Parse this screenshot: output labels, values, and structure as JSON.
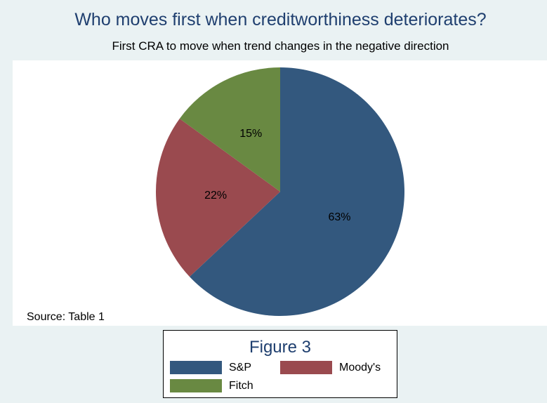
{
  "chart_data": {
    "type": "pie",
    "title": "Who moves first when creditworthiness deteriorates?",
    "subtitle": "First CRA to move when trend changes in the negative direction",
    "note": "Source: Table 1",
    "legend_title": "Figure 3",
    "legend_position": "bottom",
    "slices": [
      {
        "name": "S&P",
        "value": 63,
        "label": "63%",
        "color": "#33587e"
      },
      {
        "name": "Moody's",
        "value": 22,
        "label": "22%",
        "color": "#9a4a4f"
      },
      {
        "name": "Fitch",
        "value": 15,
        "label": "15%",
        "color": "#698942"
      }
    ]
  }
}
